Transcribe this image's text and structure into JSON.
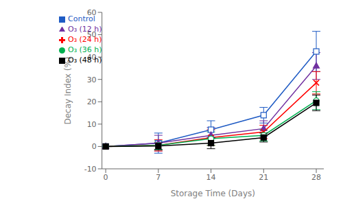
{
  "chart_data": {
    "type": "line",
    "x": [
      0,
      7,
      14,
      21,
      28
    ],
    "xlabel": "Storage Time (Days)",
    "ylabel": "Decay Index (%)",
    "xlim": [
      -0.5,
      29
    ],
    "ylim": [
      -10,
      60
    ],
    "xticks": [
      0,
      7,
      14,
      21,
      28
    ],
    "yticks": [
      -10,
      0,
      10,
      20,
      30,
      40,
      50,
      60
    ],
    "grid": false,
    "legend": "upper left",
    "series": [
      {
        "name": "Control",
        "color": "#1F5BC4",
        "marker": "open_square",
        "values": [
          0,
          1.5,
          7.5,
          14.0,
          42.5
        ],
        "errors": [
          0,
          4.5,
          4.0,
          3.5,
          9.0
        ]
      },
      {
        "name": "O₃ (12 h)",
        "color": "#7030A0",
        "marker": "triangle",
        "values": [
          0,
          1.5,
          5.0,
          8.0,
          36.0
        ],
        "errors": [
          0,
          3.5,
          3.5,
          3.5,
          6.0
        ]
      },
      {
        "name": "O₃ (24 h)",
        "color": "#FF0000",
        "marker": "x",
        "values": [
          0,
          0.5,
          4.0,
          6.5,
          28.5
        ],
        "errors": [
          0,
          2.5,
          3.5,
          3.0,
          5.0
        ]
      },
      {
        "name": "O₃ (36 h)",
        "color": "#00B050",
        "marker": "open_circle",
        "values": [
          0,
          0.5,
          3.5,
          5.0,
          20.5
        ],
        "errors": [
          0,
          2.0,
          3.0,
          2.5,
          4.0
        ]
      },
      {
        "name": "O₃ (48 h)",
        "color": "#000000",
        "marker": "square",
        "values": [
          0,
          0.2,
          1.5,
          4.0,
          19.5
        ],
        "errors": [
          0,
          1.5,
          2.5,
          2.0,
          3.5
        ]
      }
    ]
  }
}
